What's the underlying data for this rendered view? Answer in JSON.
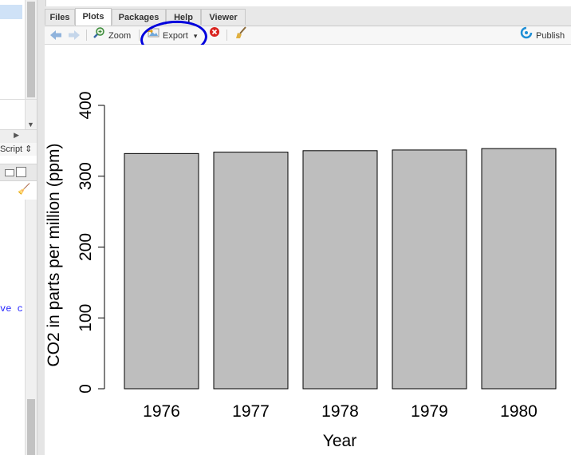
{
  "left_panel": {
    "script_label": "Script ⇕",
    "code_fragment": "ve c"
  },
  "tabs": [
    {
      "label": "Files",
      "active": false
    },
    {
      "label": "Plots",
      "active": true
    },
    {
      "label": "Packages",
      "active": false
    },
    {
      "label": "Help",
      "active": false
    },
    {
      "label": "Viewer",
      "active": false
    }
  ],
  "toolbar": {
    "zoom_label": "Zoom",
    "export_label": "Export",
    "export_dropdown": "▾",
    "publish_label": "Publish"
  },
  "icons": {
    "back": "arrow-left-icon",
    "forward": "arrow-right-icon",
    "zoom": "zoom-icon",
    "export": "export-icon",
    "remove": "remove-plot-icon",
    "clear": "broom-icon",
    "publish": "publish-icon"
  },
  "colors": {
    "bar_fill": "#bebebe",
    "annotation": "#0000dd",
    "remove_icon": "#d9231f",
    "publish_icon": "#1f8fd6"
  },
  "chart_data": {
    "type": "bar",
    "categories": [
      "1976",
      "1977",
      "1978",
      "1979",
      "1980"
    ],
    "values": [
      332,
      334,
      336,
      337,
      339
    ],
    "ylabel": "CO2 in parts per million (ppm)",
    "xlabel": "Year",
    "ylim": [
      0,
      400
    ],
    "yticks": [
      0,
      100,
      200,
      300,
      400
    ],
    "grid": false,
    "legend": "none"
  }
}
